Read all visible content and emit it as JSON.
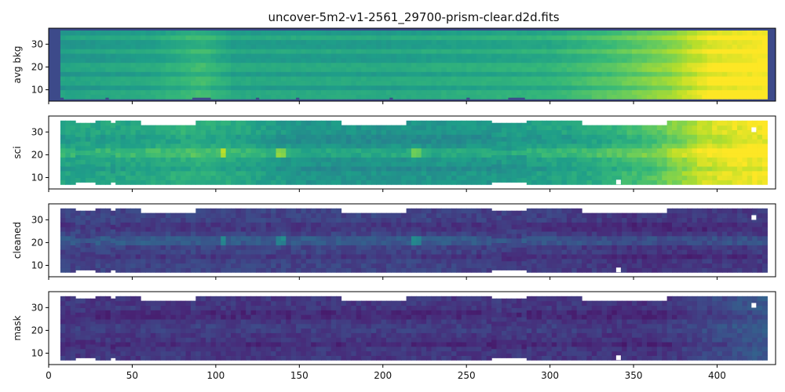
{
  "chart_data": {
    "type": "heatmap",
    "title": "uncover-5m2-v1-2561_29700-prism-clear.d2d.fits",
    "colormap": "viridis",
    "shared_xaxis": true,
    "xlim": [
      0,
      435
    ],
    "xticks": [
      0,
      50,
      100,
      150,
      200,
      250,
      300,
      350,
      400
    ],
    "grid": false,
    "panels": [
      {
        "ylabel": "avg bkg",
        "ylim": [
          5,
          37
        ],
        "yticks": [
          10,
          20,
          30
        ],
        "background_color": "#3d4a8a",
        "data_extent": {
          "x": [
            7,
            428
          ],
          "y": [
            6,
            35
          ]
        },
        "intensity_profile_x": [
          [
            0,
            0.52
          ],
          [
            60,
            0.56
          ],
          [
            90,
            0.64
          ],
          [
            110,
            0.55
          ],
          [
            200,
            0.55
          ],
          [
            300,
            0.6
          ],
          [
            340,
            0.7
          ],
          [
            370,
            0.8
          ],
          [
            395,
            0.95
          ],
          [
            428,
            1.0
          ]
        ],
        "row_modulation_y": [
          8,
          14,
          20,
          27,
          33
        ],
        "notches": [
          [
            7,
            5,
            9
          ],
          [
            34,
            5,
            36
          ],
          [
            86,
            5,
            97
          ],
          [
            124,
            5,
            126
          ],
          [
            148,
            5,
            150
          ],
          [
            204,
            5,
            206
          ],
          [
            250,
            5,
            252
          ],
          [
            275,
            5,
            285
          ]
        ]
      },
      {
        "ylabel": "sci",
        "ylim": [
          5,
          37
        ],
        "yticks": [
          10,
          20,
          30
        ],
        "background_color": "#ffffff",
        "data_extent": {
          "x": [
            7,
            428
          ],
          "y": [
            7,
            34
          ]
        },
        "intensity_profile_x": [
          [
            0,
            0.58
          ],
          [
            60,
            0.6
          ],
          [
            80,
            0.64
          ],
          [
            100,
            0.62
          ],
          [
            150,
            0.52
          ],
          [
            200,
            0.52
          ],
          [
            260,
            0.53
          ],
          [
            320,
            0.6
          ],
          [
            360,
            0.72
          ],
          [
            390,
            0.92
          ],
          [
            428,
            1.0
          ]
        ],
        "trace_y": 21,
        "emission_lines_x": [
          103,
          137,
          219
        ],
        "top_edges": [
          [
            7,
            54,
            34
          ],
          [
            54,
            87,
            33
          ],
          [
            87,
            173,
            34
          ],
          [
            173,
            213,
            33
          ],
          [
            213,
            318,
            34
          ],
          [
            318,
            368,
            33
          ],
          [
            368,
            428,
            34
          ]
        ],
        "bottom_edges": [
          [
            7,
            15,
            7
          ],
          [
            15,
            28,
            8
          ],
          [
            28,
            36,
            7
          ],
          [
            36,
            40,
            8
          ],
          [
            40,
            265,
            7
          ],
          [
            265,
            284,
            8
          ],
          [
            284,
            428,
            7
          ]
        ],
        "holes": [
          [
            341,
            8
          ],
          [
            422,
            31
          ]
        ]
      },
      {
        "ylabel": "cleaned",
        "ylim": [
          5,
          37
        ],
        "yticks": [
          10,
          20,
          30
        ],
        "background_color": "#ffffff",
        "data_extent": {
          "x": [
            7,
            428
          ],
          "y": [
            7,
            34
          ]
        },
        "intensity_profile_x": [
          [
            0,
            0.2
          ],
          [
            200,
            0.2
          ],
          [
            300,
            0.18
          ],
          [
            350,
            0.15
          ],
          [
            428,
            0.17
          ]
        ],
        "trace_y": 21,
        "emission_lines_x": [
          103,
          137,
          219
        ],
        "top_edges": [
          [
            7,
            54,
            34
          ],
          [
            54,
            87,
            33
          ],
          [
            87,
            173,
            34
          ],
          [
            173,
            213,
            33
          ],
          [
            213,
            318,
            34
          ],
          [
            318,
            368,
            33
          ],
          [
            368,
            428,
            34
          ]
        ],
        "bottom_edges": [
          [
            7,
            15,
            7
          ],
          [
            15,
            28,
            8
          ],
          [
            28,
            36,
            7
          ],
          [
            36,
            40,
            8
          ],
          [
            40,
            265,
            7
          ],
          [
            265,
            284,
            8
          ],
          [
            284,
            428,
            7
          ]
        ],
        "holes": [
          [
            341,
            8
          ],
          [
            422,
            31
          ]
        ]
      },
      {
        "ylabel": "mask",
        "ylim": [
          5,
          37
        ],
        "yticks": [
          10,
          20,
          30
        ],
        "background_color": "#ffffff",
        "data_extent": {
          "x": [
            7,
            428
          ],
          "y": [
            7,
            34
          ]
        },
        "intensity_profile_x": [
          [
            0,
            0.16
          ],
          [
            300,
            0.16
          ],
          [
            360,
            0.14
          ],
          [
            390,
            0.2
          ],
          [
            428,
            0.28
          ]
        ],
        "trace_y": 21,
        "emission_lines_x": [],
        "top_edges": [
          [
            7,
            54,
            34
          ],
          [
            54,
            87,
            33
          ],
          [
            87,
            173,
            34
          ],
          [
            173,
            213,
            33
          ],
          [
            213,
            318,
            34
          ],
          [
            318,
            368,
            33
          ],
          [
            368,
            428,
            34
          ]
        ],
        "bottom_edges": [
          [
            7,
            15,
            7
          ],
          [
            15,
            28,
            8
          ],
          [
            28,
            36,
            7
          ],
          [
            36,
            40,
            8
          ],
          [
            40,
            265,
            7
          ],
          [
            265,
            284,
            8
          ],
          [
            284,
            428,
            7
          ]
        ],
        "holes": [
          [
            341,
            8
          ],
          [
            422,
            31
          ]
        ]
      }
    ]
  }
}
